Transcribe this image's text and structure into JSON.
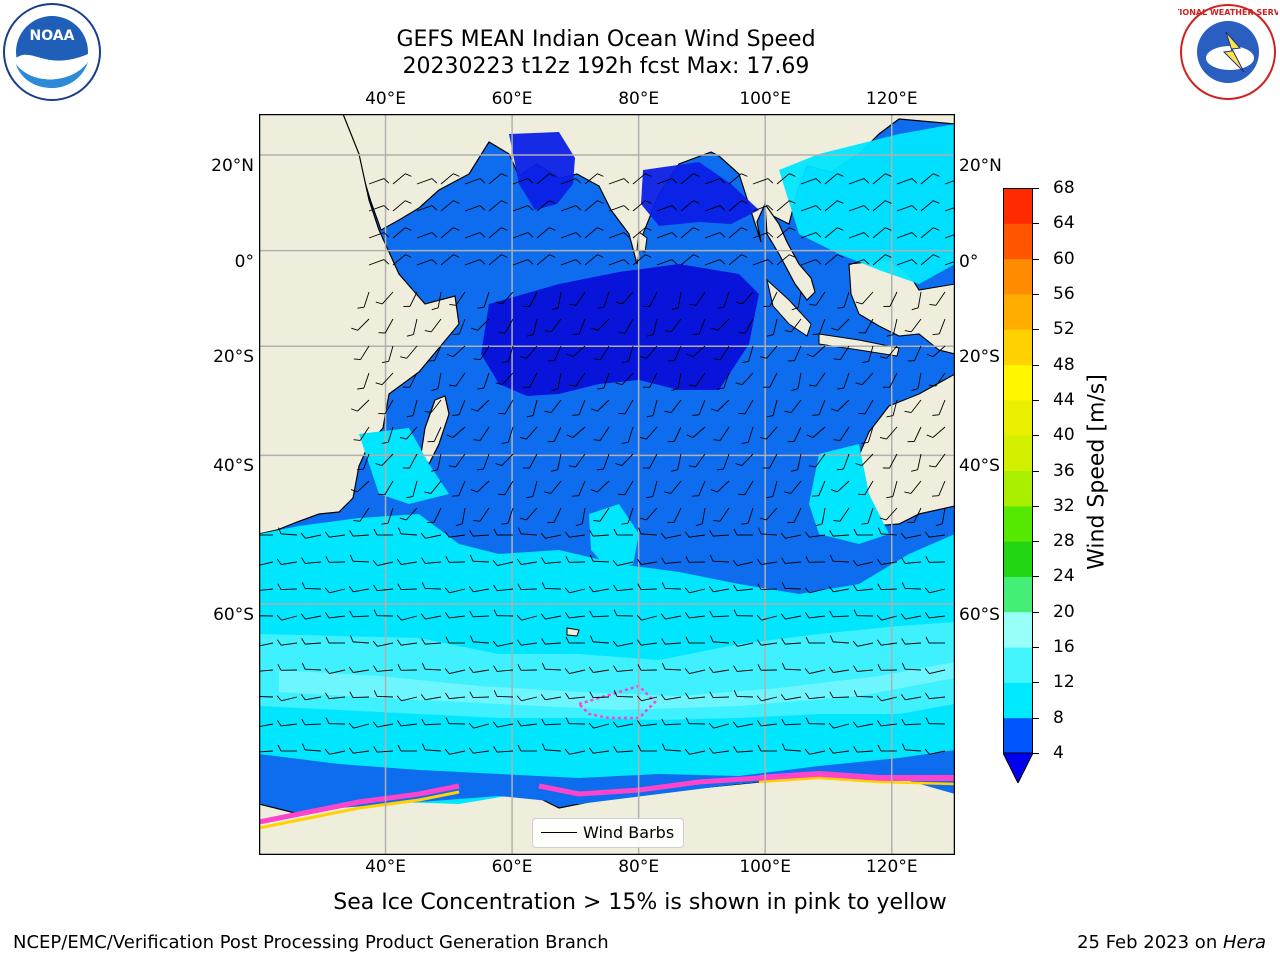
{
  "title": {
    "line1": "GEFS MEAN Indian Ocean Wind Speed",
    "line2": "20230223 t12z 192h fcst   Max: 17.69"
  },
  "map": {
    "lon_labels": [
      "40°E",
      "60°E",
      "80°E",
      "100°E",
      "120°E"
    ],
    "lat_labels": [
      "20°N",
      "0°",
      "20°S",
      "40°S",
      "60°S"
    ],
    "lon_values": [
      40,
      60,
      80,
      100,
      120
    ],
    "lat_values": [
      20,
      0,
      -20,
      -40,
      -60
    ],
    "region": "Indian Ocean",
    "extent": {
      "lon": [
        20,
        130
      ],
      "lat": [
        -78,
        28
      ]
    },
    "gridlines": true,
    "land_color": "#efeedd"
  },
  "colorbar": {
    "label": "Wind Speed [m/s]",
    "ticks": [
      "4",
      "8",
      "12",
      "16",
      "20",
      "24",
      "28",
      "32",
      "36",
      "40",
      "44",
      "48",
      "52",
      "56",
      "60",
      "64",
      "68"
    ],
    "colors": [
      "#0055ff",
      "#00eaff",
      "#44f4ff",
      "#99fff9",
      "#44ee77",
      "#22d611",
      "#55e800",
      "#aaef00",
      "#d2f000",
      "#eaf000",
      "#fff600",
      "#ffd200",
      "#ffae00",
      "#ff8c00",
      "#ff5500",
      "#ff2a00"
    ],
    "under_color": "#0000ee",
    "range": [
      4,
      68
    ]
  },
  "legend": {
    "label": "Wind Barbs"
  },
  "note": "Sea Ice Concentration > 15% is shown in pink to yellow",
  "footer": {
    "left": "NCEP/EMC/Verification Post Processing Product Generation Branch",
    "right_date": "25 Feb 2023 on ",
    "right_machine": "Hera"
  },
  "logos": {
    "left": "NOAA",
    "right": "NATIONAL WEATHER SERVICE"
  }
}
